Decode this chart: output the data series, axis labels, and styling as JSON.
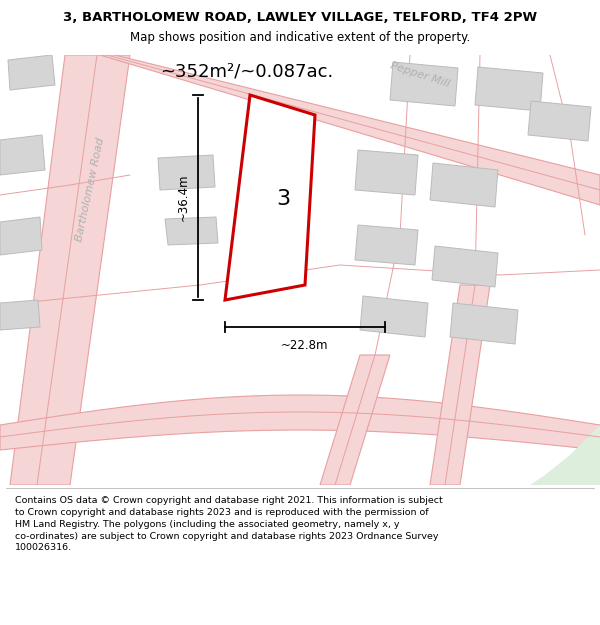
{
  "title": "3, BARTHOLOMEW ROAD, LAWLEY VILLAGE, TELFORD, TF4 2PW",
  "subtitle": "Map shows position and indicative extent of the property.",
  "footer": "Contains OS data © Crown copyright and database right 2021. This information is subject\nto Crown copyright and database rights 2023 and is reproduced with the permission of\nHM Land Registry. The polygons (including the associated geometry, namely x, y\nco-ordinates) are subject to Crown copyright and database rights 2023 Ordnance Survey\n100026316.",
  "map_bg": "#ededea",
  "road_color": "#e8a0a0",
  "road_fill": "#f5d5d5",
  "building_fill": "#d5d5d5",
  "building_edge": "#bbbbbb",
  "plot_color": "#cc0000",
  "plot_fill": "#ffffff",
  "green_fill": "#ddeedd",
  "area_text": "~352m²/~0.087ac.",
  "dim_width": "~22.8m",
  "dim_height": "~36.4m",
  "label": "3",
  "road1_name": "Bartholomew Road",
  "road2_name": "Pepper Mill",
  "figsize": [
    6.0,
    6.25
  ],
  "dpi": 100
}
